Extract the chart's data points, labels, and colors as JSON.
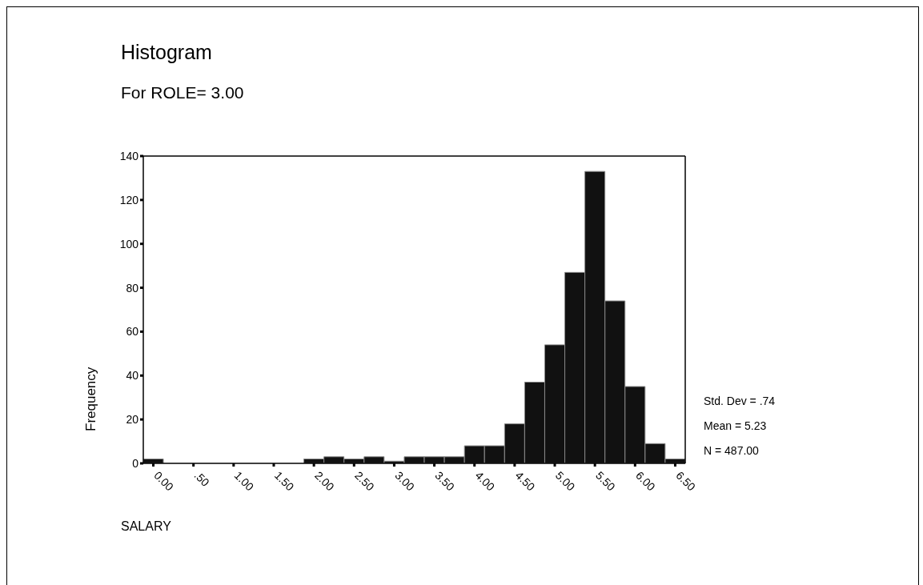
{
  "chart_data": {
    "type": "histogram",
    "title": "Histogram",
    "subtitle": "For ROLE= 3.00",
    "xlabel": "SALARY",
    "ylabel": "Frequency",
    "bins": [
      -0.125,
      0.125,
      0.375,
      0.625,
      0.875,
      1.125,
      1.375,
      1.625,
      1.875,
      2.125,
      2.375,
      2.625,
      2.875,
      3.125,
      3.375,
      3.625,
      3.875,
      4.125,
      4.375,
      4.625,
      4.875,
      5.125,
      5.375,
      5.625,
      5.875,
      6.125,
      6.375,
      6.625
    ],
    "values": [
      2,
      0,
      0,
      0,
      0,
      0,
      0,
      0,
      2,
      3,
      2,
      3,
      1,
      3,
      3,
      3,
      8,
      8,
      18,
      37,
      54,
      87,
      133,
      74,
      35,
      9,
      2
    ],
    "color": "#111111",
    "xlim": [
      -0.125,
      6.625
    ],
    "xticks": [
      {
        "value": 0,
        "label": "0.00"
      },
      {
        "value": 0.5,
        "label": ".50"
      },
      {
        "value": 1,
        "label": "1.00"
      },
      {
        "value": 1.5,
        "label": "1.50"
      },
      {
        "value": 2,
        "label": "2.00"
      },
      {
        "value": 2.5,
        "label": "2.50"
      },
      {
        "value": 3,
        "label": "3.00"
      },
      {
        "value": 3.5,
        "label": "3.50"
      },
      {
        "value": 4,
        "label": "4.00"
      },
      {
        "value": 4.5,
        "label": "4.50"
      },
      {
        "value": 5,
        "label": "5.00"
      },
      {
        "value": 5.5,
        "label": "5.50"
      },
      {
        "value": 6,
        "label": "6.00"
      },
      {
        "value": 6.5,
        "label": "6.50"
      }
    ],
    "ylim": [
      0,
      140
    ],
    "yticks": [
      0,
      20,
      40,
      60,
      80,
      100,
      120,
      140
    ],
    "annotations": [
      "Std. Dev = .74",
      "Mean = 5.23",
      "N = 487.00"
    ]
  }
}
